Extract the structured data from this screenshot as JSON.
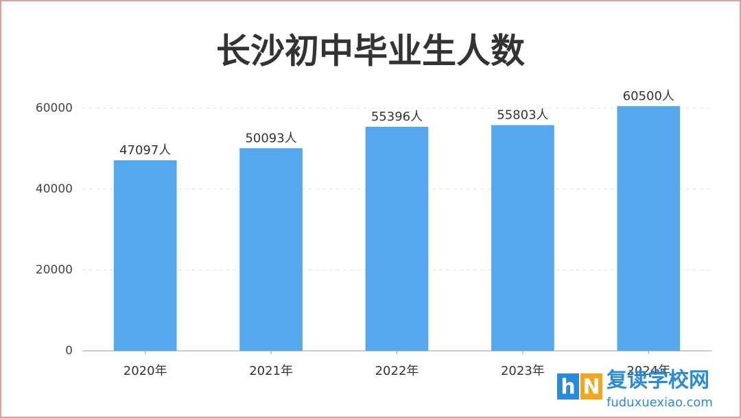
{
  "chart_data": {
    "type": "bar",
    "title": "长沙初中毕业生人数",
    "categories": [
      "2020年",
      "2021年",
      "2022年",
      "2023年",
      "2024年"
    ],
    "values": [
      47097,
      50093,
      55396,
      55803,
      60500
    ],
    "value_labels": [
      "47097人",
      "50093人",
      "55396人",
      "55803人",
      "60500人"
    ],
    "color": "#55a8ec",
    "ylim": [
      0,
      62000
    ],
    "yticks": [
      0,
      20000,
      40000,
      60000
    ],
    "grid": true
  },
  "watermark": {
    "logo": [
      "h",
      "N"
    ],
    "name": "复读学校网",
    "url": "fuduxuexiao.com"
  }
}
